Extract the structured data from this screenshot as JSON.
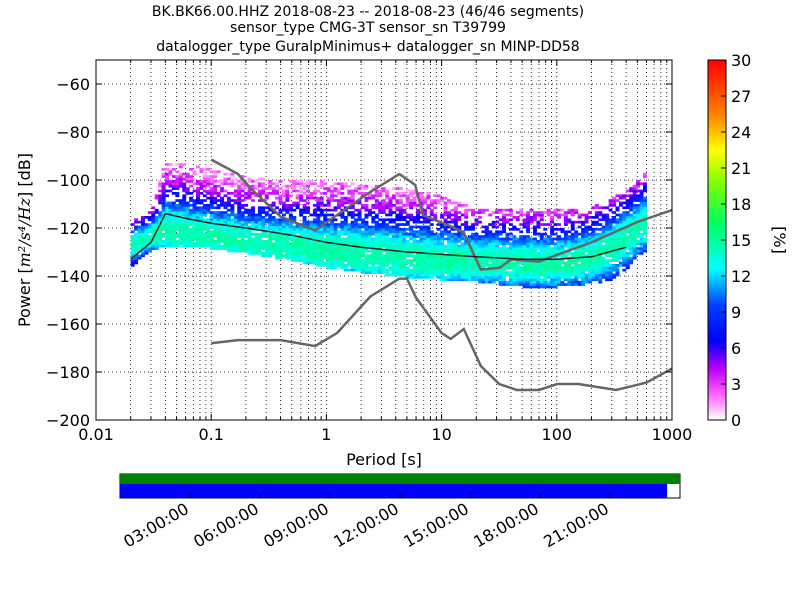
{
  "chart_data": [
    {
      "type": "heatmap",
      "title_lines": [
        "BK.BK66.00.HHZ   2018-08-23 -- 2018-08-23  (46/46 segments)",
        "sensor_type CMG-3T sensor_sn T39799",
        "datalogger_type GuralpMinimus+ datalogger_sn MINP-DD58"
      ],
      "xlabel": "Period [s]",
      "ylabel_prefix": "Power [",
      "ylabel_units": "m²/s⁴/Hz",
      "ylabel_suffix": "] [dB]",
      "x_scale": "log",
      "xlim": [
        0.01,
        1000
      ],
      "ylim": [
        -200,
        -50
      ],
      "x_tick_labels": [
        "0.01",
        "0.1",
        "1",
        "10",
        "100",
        "1000"
      ],
      "y_ticks": [
        -60,
        -80,
        -100,
        -120,
        -140,
        -160,
        -180,
        -200
      ],
      "colorbar": {
        "label": "[%]",
        "min": 0,
        "max": 30,
        "ticks": [
          0,
          3,
          6,
          9,
          12,
          15,
          18,
          21,
          24,
          27,
          30
        ],
        "colormap": "pqlx"
      },
      "noise_models": [
        {
          "name": "high-noise-model",
          "color": "#666666",
          "x": [
            0.1,
            0.17,
            0.22,
            0.4,
            0.8,
            1.2,
            2.4,
            4.3,
            5.9,
            6.9,
            12,
            15.6,
            21.9,
            32,
            40,
            70,
            100,
            200,
            500,
            1000
          ],
          "y": [
            -91.5,
            -97.4,
            -103.4,
            -115.2,
            -121.1,
            -115,
            -105,
            -97.5,
            -102.1,
            -114.7,
            -119.2,
            -121.9,
            -137.3,
            -136.6,
            -133.1,
            -134,
            -131.2,
            -126,
            -117.5,
            -112.5
          ]
        },
        {
          "name": "low-noise-model",
          "color": "#666666",
          "x": [
            0.1,
            0.17,
            0.4,
            0.8,
            1.24,
            2.4,
            4.3,
            5,
            6,
            10,
            12,
            15.6,
            21.9,
            31.6,
            45,
            70,
            101,
            154,
            328,
            600,
            1000
          ],
          "y": [
            -168,
            -166.7,
            -166.7,
            -169.2,
            -163.7,
            -148.6,
            -141.1,
            -141.1,
            -149,
            -163.8,
            -166.2,
            -162.1,
            -177.5,
            -185,
            -187.5,
            -187.5,
            -185,
            -185,
            -187.5,
            -184.4,
            -178.6
          ]
        }
      ],
      "mean_curve": {
        "color": "#222222",
        "x": [
          0.02,
          0.03,
          0.04,
          0.06,
          0.1,
          0.2,
          0.5,
          1,
          2,
          5,
          10,
          20,
          50,
          100,
          200,
          400
        ],
        "y": [
          -133,
          -126,
          -114,
          -116,
          -118,
          -120,
          -123,
          -126,
          -128,
          -130,
          -131,
          -132,
          -133,
          -133,
          -132,
          -128
        ]
      },
      "psd_band": {
        "x": [
          0.02,
          0.03,
          0.04,
          0.06,
          0.1,
          0.2,
          0.5,
          1,
          2,
          5,
          10,
          20,
          50,
          100,
          200,
          300,
          400,
          500,
          600
        ],
        "low": [
          -137,
          -130,
          -128,
          -128,
          -129,
          -131,
          -134,
          -137,
          -139,
          -141,
          -142,
          -143,
          -145,
          -145,
          -144,
          -142,
          -138,
          -132,
          -130
        ],
        "high": [
          -118,
          -113,
          -93,
          -94,
          -96,
          -99,
          -101,
          -101,
          -102,
          -104,
          -107,
          -112,
          -113,
          -113,
          -112,
          -108,
          -105,
          -100,
          -97
        ],
        "peak": [
          -128,
          -124,
          -121,
          -122,
          -124,
          -126,
          -128,
          -130,
          -131,
          -133,
          -134,
          -134,
          -135,
          -135,
          -133,
          -129,
          -125,
          -121,
          -118
        ]
      }
    },
    {
      "type": "timeline",
      "x_tick_labels": [
        "03:00:00",
        "06:00:00",
        "09:00:00",
        "12:00:00",
        "15:00:00",
        "18:00:00",
        "21:00:00"
      ],
      "top_bar_color": "#008000",
      "bottom_bar_color": "#0000ff",
      "coverage_fraction": 0.977
    }
  ]
}
